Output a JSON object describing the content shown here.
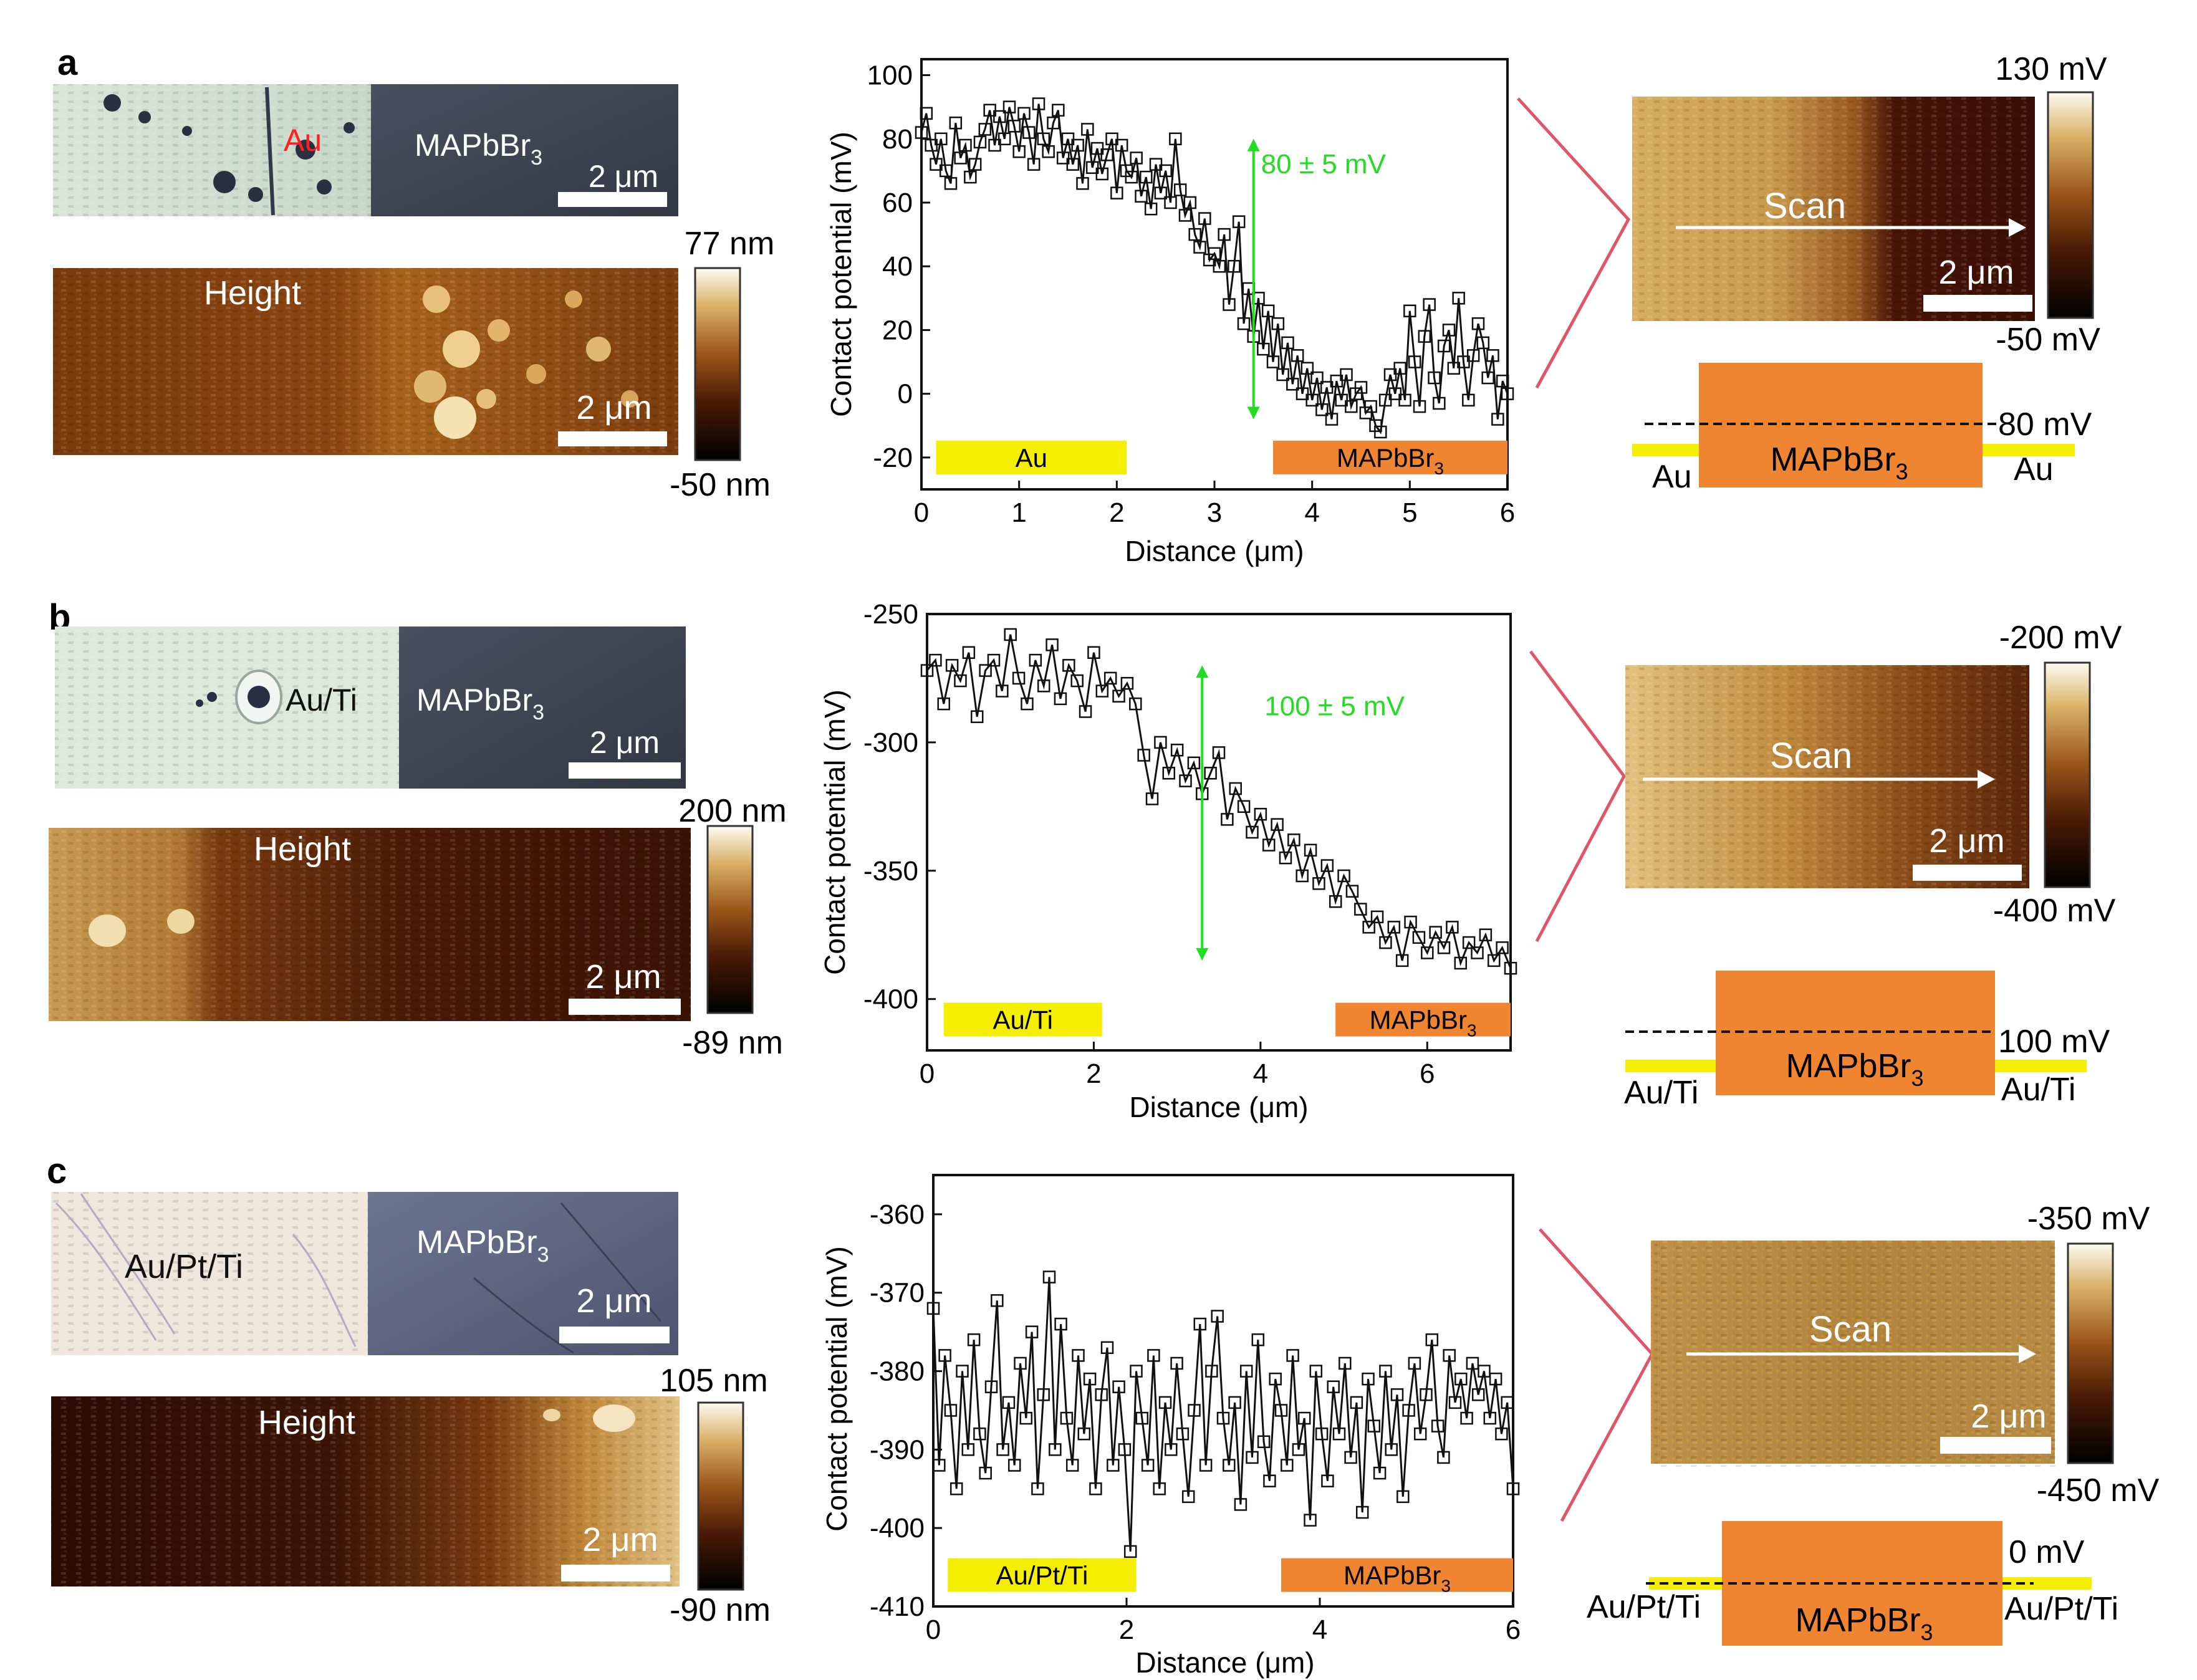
{
  "colors": {
    "gold": "#f4ee00",
    "orange": "#ef8431",
    "green": "#22dd22",
    "red_bracket": "#e0556a",
    "au_red": "#ff2020"
  },
  "panels": [
    {
      "letter": "a",
      "optical": {
        "metal_label": "Au",
        "perov_label": "MAPbBr",
        "perov_sub": "3",
        "scale": "2 μm"
      },
      "height": {
        "label": "Height",
        "scale": "2 μm",
        "cbar_max": "77 nm",
        "cbar_min": "-50 nm"
      },
      "kpfm": {
        "scan_label": "Scan",
        "scale": "2 μm",
        "cbar_max": "130 mV",
        "cbar_min": "-50 mV"
      },
      "diagram": {
        "offset_label": "80 mV",
        "left_metal": "Au",
        "right_metal": "Au",
        "block_label": "MAPbBr",
        "block_sub": "3"
      }
    },
    {
      "letter": "b",
      "optical": {
        "metal_label": "Au/Ti",
        "perov_label": "MAPbBr",
        "perov_sub": "3",
        "scale": "2 μm"
      },
      "height": {
        "label": "Height",
        "scale": "2 μm",
        "cbar_max": "200 nm",
        "cbar_min": "-89 nm"
      },
      "kpfm": {
        "scan_label": "Scan",
        "scale": "2 μm",
        "cbar_max": "-200 mV",
        "cbar_min": "-400 mV"
      },
      "diagram": {
        "offset_label": "100 mV",
        "left_metal": "Au/Ti",
        "right_metal": "Au/Ti",
        "block_label": "MAPbBr",
        "block_sub": "3"
      }
    },
    {
      "letter": "c",
      "optical": {
        "metal_label": "Au/Pt/Ti",
        "perov_label": "MAPbBr",
        "perov_sub": "3",
        "scale": "2 μm"
      },
      "height": {
        "label": "Height",
        "scale": "2 μm",
        "cbar_max": "105 nm",
        "cbar_min": "-90 nm"
      },
      "kpfm": {
        "scan_label": "Scan",
        "scale": "2 μm",
        "cbar_max": "-350 mV",
        "cbar_min": "-450 mV"
      },
      "diagram": {
        "offset_label": "0 mV",
        "left_metal": "Au/Pt/Ti",
        "right_metal": "Au/Pt/Ti",
        "block_label": "MAPbBr",
        "block_sub": "3"
      }
    }
  ],
  "chart_data": [
    {
      "type": "line",
      "panel": "a",
      "xlabel": "Distance (μm)",
      "ylabel": "Contact potential (mV)",
      "xlim": [
        0,
        6
      ],
      "ylim": [
        -30,
        105
      ],
      "xticks": [
        0,
        1,
        2,
        3,
        4,
        5,
        6
      ],
      "yticks": [
        -20,
        0,
        20,
        40,
        60,
        80,
        100
      ],
      "annotation": {
        "text": "80 ± 5 mV",
        "x": 3.4,
        "y_top": 80,
        "y_bottom": -8
      },
      "region_labels": [
        {
          "text": "Au",
          "sub": "",
          "x0": 0.15,
          "x1": 2.1,
          "y": -20,
          "color": "gold"
        },
        {
          "text": "MAPbBr",
          "sub": "3",
          "x0": 3.6,
          "x1": 6.0,
          "y": -20,
          "color": "orange"
        }
      ],
      "x": [
        0.0,
        0.05,
        0.1,
        0.15,
        0.2,
        0.25,
        0.3,
        0.35,
        0.4,
        0.45,
        0.5,
        0.55,
        0.6,
        0.65,
        0.7,
        0.75,
        0.8,
        0.85,
        0.9,
        0.95,
        1.0,
        1.05,
        1.1,
        1.15,
        1.2,
        1.25,
        1.3,
        1.35,
        1.4,
        1.45,
        1.5,
        1.55,
        1.6,
        1.65,
        1.7,
        1.75,
        1.8,
        1.85,
        1.9,
        1.95,
        2.0,
        2.05,
        2.1,
        2.15,
        2.2,
        2.25,
        2.3,
        2.35,
        2.4,
        2.45,
        2.5,
        2.55,
        2.6,
        2.65,
        2.7,
        2.75,
        2.8,
        2.85,
        2.9,
        2.95,
        3.0,
        3.05,
        3.1,
        3.15,
        3.2,
        3.25,
        3.3,
        3.35,
        3.4,
        3.45,
        3.5,
        3.55,
        3.6,
        3.65,
        3.7,
        3.75,
        3.8,
        3.85,
        3.9,
        3.95,
        4.0,
        4.05,
        4.1,
        4.15,
        4.2,
        4.25,
        4.3,
        4.35,
        4.4,
        4.45,
        4.5,
        4.55,
        4.6,
        4.65,
        4.7,
        4.75,
        4.8,
        4.85,
        4.9,
        4.95,
        5.0,
        5.05,
        5.1,
        5.15,
        5.2,
        5.25,
        5.3,
        5.35,
        5.4,
        5.45,
        5.5,
        5.55,
        5.6,
        5.65,
        5.7,
        5.75,
        5.8,
        5.85,
        5.9,
        5.95,
        6.0
      ],
      "y": [
        82,
        88,
        78,
        72,
        80,
        70,
        66,
        85,
        74,
        78,
        68,
        72,
        79,
        83,
        89,
        78,
        87,
        80,
        90,
        84,
        76,
        88,
        82,
        72,
        91,
        80,
        76,
        85,
        89,
        74,
        80,
        72,
        78,
        66,
        83,
        71,
        77,
        69,
        75,
        80,
        63,
        78,
        70,
        68,
        74,
        62,
        68,
        58,
        72,
        63,
        70,
        60,
        80,
        64,
        56,
        60,
        50,
        46,
        55,
        42,
        44,
        40,
        50,
        28,
        40,
        54,
        22,
        33,
        18,
        30,
        14,
        26,
        10,
        22,
        6,
        16,
        3,
        12,
        0,
        8,
        -2,
        5,
        -5,
        2,
        -8,
        4,
        -2,
        6,
        -4,
        0,
        2,
        -6,
        -4,
        -10,
        -12,
        -2,
        6,
        0,
        8,
        -2,
        26,
        10,
        -4,
        18,
        28,
        5,
        -3,
        15,
        20,
        8,
        30,
        10,
        -2,
        12,
        22,
        16,
        5,
        12,
        -8,
        4,
        0
      ]
    },
    {
      "type": "line",
      "panel": "b",
      "xlabel": "Distance (μm)",
      "ylabel": "Contact potential (mV)",
      "xlim": [
        0,
        7
      ],
      "ylim": [
        -420,
        -250
      ],
      "xticks": [
        0,
        2,
        4,
        6
      ],
      "yticks": [
        -250,
        -300,
        -350,
        -400
      ],
      "annotation": {
        "text": "100 ± 5 mV",
        "x": 3.3,
        "y_top": -270,
        "y_bottom": -385
      },
      "region_labels": [
        {
          "text": "Au/Ti",
          "sub": "",
          "x0": 0.2,
          "x1": 2.1,
          "y": -408,
          "color": "gold"
        },
        {
          "text": "MAPbBr",
          "sub": "3",
          "x0": 4.9,
          "x1": 7.0,
          "y": -408,
          "color": "orange"
        }
      ],
      "x": [
        0.0,
        0.1,
        0.2,
        0.3,
        0.4,
        0.5,
        0.6,
        0.7,
        0.8,
        0.9,
        1.0,
        1.1,
        1.2,
        1.3,
        1.4,
        1.5,
        1.6,
        1.7,
        1.8,
        1.9,
        2.0,
        2.1,
        2.2,
        2.3,
        2.4,
        2.5,
        2.6,
        2.7,
        2.8,
        2.9,
        3.0,
        3.1,
        3.2,
        3.3,
        3.4,
        3.5,
        3.6,
        3.7,
        3.8,
        3.9,
        4.0,
        4.1,
        4.2,
        4.3,
        4.4,
        4.5,
        4.6,
        4.7,
        4.8,
        4.9,
        5.0,
        5.1,
        5.2,
        5.3,
        5.4,
        5.5,
        5.6,
        5.7,
        5.8,
        5.9,
        6.0,
        6.1,
        6.2,
        6.3,
        6.4,
        6.5,
        6.6,
        6.7,
        6.8,
        6.9,
        7.0
      ],
      "y": [
        -272,
        -268,
        -285,
        -270,
        -276,
        -265,
        -290,
        -272,
        -268,
        -280,
        -258,
        -275,
        -285,
        -268,
        -278,
        -262,
        -283,
        -270,
        -276,
        -288,
        -265,
        -280,
        -275,
        -282,
        -277,
        -285,
        -305,
        -322,
        -300,
        -312,
        -303,
        -315,
        -308,
        -320,
        -312,
        -304,
        -330,
        -318,
        -325,
        -335,
        -328,
        -340,
        -332,
        -345,
        -338,
        -352,
        -342,
        -355,
        -348,
        -362,
        -352,
        -358,
        -365,
        -372,
        -368,
        -378,
        -372,
        -385,
        -370,
        -376,
        -382,
        -374,
        -380,
        -372,
        -386,
        -378,
        -382,
        -375,
        -385,
        -380,
        -388
      ]
    },
    {
      "type": "line",
      "panel": "c",
      "xlabel": "Distance (μm)",
      "ylabel": "Contact potential (mV)",
      "xlim": [
        0,
        6
      ],
      "ylim": [
        -410,
        -355
      ],
      "xticks": [
        0,
        2,
        4,
        6
      ],
      "yticks": [
        -360,
        -370,
        -380,
        -390,
        -400,
        -410
      ],
      "region_labels": [
        {
          "text": "Au/Pt/Ti",
          "sub": "",
          "x0": 0.15,
          "x1": 2.1,
          "y": -406,
          "color": "gold"
        },
        {
          "text": "MAPbBr",
          "sub": "3",
          "x0": 3.6,
          "x1": 6.0,
          "y": -406,
          "color": "orange"
        }
      ],
      "x": [
        0.0,
        0.06,
        0.12,
        0.18,
        0.24,
        0.3,
        0.36,
        0.42,
        0.48,
        0.54,
        0.6,
        0.66,
        0.72,
        0.78,
        0.84,
        0.9,
        0.96,
        1.02,
        1.08,
        1.14,
        1.2,
        1.26,
        1.32,
        1.38,
        1.44,
        1.5,
        1.56,
        1.62,
        1.68,
        1.74,
        1.8,
        1.86,
        1.92,
        1.98,
        2.04,
        2.1,
        2.16,
        2.22,
        2.28,
        2.34,
        2.4,
        2.46,
        2.52,
        2.58,
        2.64,
        2.7,
        2.76,
        2.82,
        2.88,
        2.94,
        3.0,
        3.06,
        3.12,
        3.18,
        3.24,
        3.3,
        3.36,
        3.42,
        3.48,
        3.54,
        3.6,
        3.66,
        3.72,
        3.78,
        3.84,
        3.9,
        3.96,
        4.02,
        4.08,
        4.14,
        4.2,
        4.26,
        4.32,
        4.38,
        4.44,
        4.5,
        4.56,
        4.62,
        4.68,
        4.74,
        4.8,
        4.86,
        4.92,
        4.98,
        5.04,
        5.1,
        5.16,
        5.22,
        5.28,
        5.34,
        5.4,
        5.46,
        5.52,
        5.58,
        5.64,
        5.7,
        5.76,
        5.82,
        5.88,
        5.94,
        6.0
      ],
      "y": [
        -372,
        -392,
        -378,
        -385,
        -395,
        -380,
        -390,
        -376,
        -388,
        -393,
        -382,
        -371,
        -390,
        -384,
        -392,
        -379,
        -386,
        -375,
        -395,
        -383,
        -368,
        -390,
        -374,
        -386,
        -392,
        -378,
        -388,
        -381,
        -395,
        -383,
        -377,
        -392,
        -382,
        -390,
        -403,
        -380,
        -386,
        -392,
        -378,
        -395,
        -384,
        -390,
        -379,
        -388,
        -396,
        -385,
        -374,
        -392,
        -380,
        -373,
        -386,
        -392,
        -384,
        -397,
        -380,
        -391,
        -376,
        -389,
        -394,
        -381,
        -385,
        -392,
        -378,
        -390,
        -386,
        -399,
        -380,
        -388,
        -394,
        -382,
        -388,
        -379,
        -391,
        -384,
        -398,
        -381,
        -387,
        -393,
        -380,
        -390,
        -383,
        -396,
        -385,
        -379,
        -388,
        -383,
        -376,
        -387,
        -391,
        -378,
        -384,
        -381,
        -386,
        -379,
        -383,
        -380,
        -386,
        -381,
        -388,
        -384,
        -395
      ]
    }
  ]
}
